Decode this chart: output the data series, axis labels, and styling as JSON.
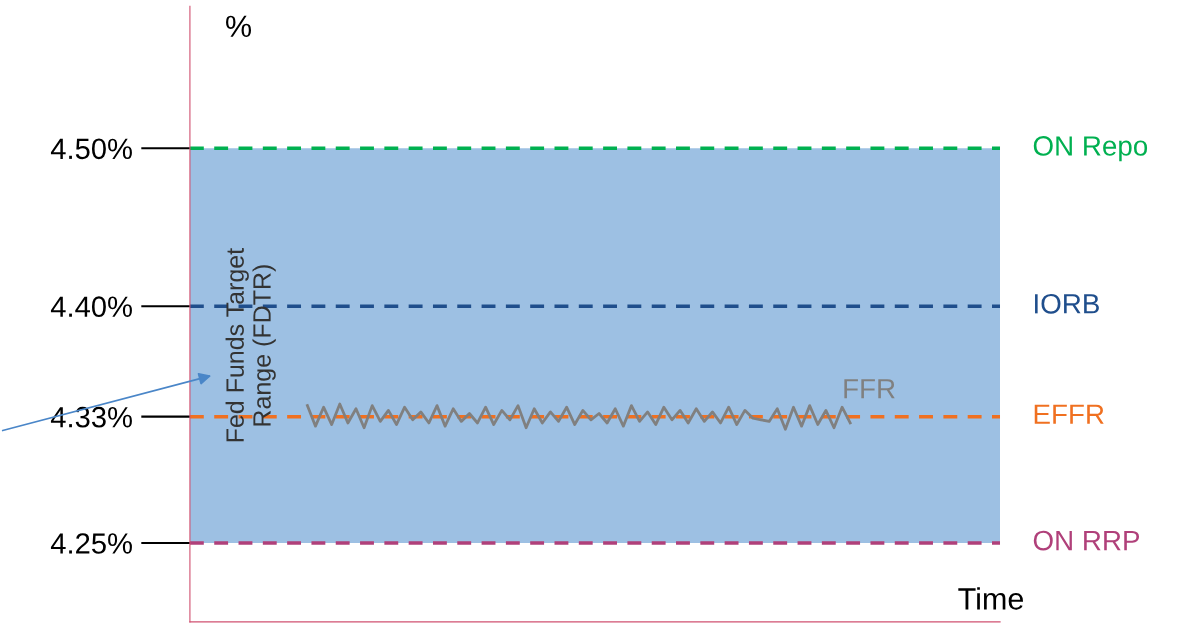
{
  "chart_data": {
    "type": "line",
    "xlabel": "Time",
    "ylabel": "%",
    "categories": [
      null,
      null,
      null,
      null,
      null,
      null,
      null,
      null,
      null,
      null,
      null,
      null,
      null,
      null,
      null,
      null,
      null,
      null,
      null,
      null,
      null,
      null,
      null,
      null,
      null,
      null,
      null,
      null,
      null,
      null,
      null,
      null,
      null,
      null,
      null,
      null,
      null,
      null,
      null,
      null,
      null,
      null,
      null,
      null,
      null,
      null,
      null,
      null,
      null,
      null,
      null,
      null,
      null,
      null,
      null,
      null,
      null,
      null,
      null,
      null,
      null,
      null,
      null,
      null,
      null,
      null,
      null,
      null,
      null,
      null,
      null,
      null,
      null,
      null,
      null,
      null,
      null,
      null,
      null,
      null,
      null,
      null,
      null,
      null,
      null,
      null,
      null,
      null,
      null,
      null,
      null,
      null,
      null,
      null,
      null,
      null,
      null,
      null,
      null,
      null
    ],
    "series": [
      {
        "name": "FFR",
        "color": "#808080",
        "values": [
          null,
          null,
          null,
          null,
          null,
          null,
          null,
          null,
          null,
          null,
          null,
          null,
          null,
          null,
          4.337,
          4.324,
          4.336,
          4.325,
          4.338,
          4.326,
          4.335,
          4.323,
          4.337,
          4.327,
          4.334,
          4.325,
          4.336,
          4.328,
          4.333,
          4.326,
          4.337,
          4.324,
          4.335,
          4.327,
          4.332,
          4.326,
          4.336,
          4.325,
          4.334,
          4.328,
          4.337,
          4.323,
          4.335,
          4.326,
          4.333,
          4.327,
          4.336,
          4.325,
          4.334,
          4.328,
          4.332,
          4.326,
          4.335,
          4.324,
          4.337,
          4.327,
          4.333,
          4.325,
          4.336,
          4.328,
          4.334,
          4.326,
          4.335,
          4.327,
          4.333,
          4.326,
          4.336,
          4.325,
          4.334,
          4.329,
          4.328,
          4.327,
          4.335,
          4.322,
          4.336,
          4.324,
          4.337,
          4.325,
          4.334,
          4.323,
          4.336,
          4.326,
          null,
          null,
          null,
          null,
          null,
          null,
          null,
          null,
          null,
          null,
          null,
          null,
          null,
          null,
          null,
          null,
          null,
          null
        ]
      }
    ],
    "ylim": [
      4.2,
      4.59
    ],
    "yticks": [
      {
        "value": 4.25,
        "label": "4.25%"
      },
      {
        "value": 4.33,
        "label": "4.33%"
      },
      {
        "value": 4.4,
        "label": "4.40%"
      },
      {
        "value": 4.5,
        "label": "4.50%"
      }
    ],
    "tick_labels": "y",
    "grid": false,
    "legend": false,
    "marker": "none",
    "line_style": "solid",
    "bands": [
      {
        "axis": "y",
        "from": 4.25,
        "to": 4.5,
        "label": "Fed Funds Target Range (FDTR)",
        "color": "#9dc0e3"
      }
    ],
    "ref_lines": [
      {
        "axis": "y",
        "value": 4.5,
        "label": "ON Repo",
        "color": "#00b050",
        "line_style": "dashed"
      },
      {
        "axis": "y",
        "value": 4.4,
        "label": "IORB",
        "color": "#1f4e8c",
        "line_style": "dashed"
      },
      {
        "axis": "y",
        "value": 4.33,
        "label": "EFFR",
        "color": "#f07020",
        "line_style": "dashed"
      },
      {
        "axis": "y",
        "value": 4.25,
        "label": "ON RRP",
        "color": "#b0407a",
        "line_style": "dashed"
      }
    ]
  }
}
